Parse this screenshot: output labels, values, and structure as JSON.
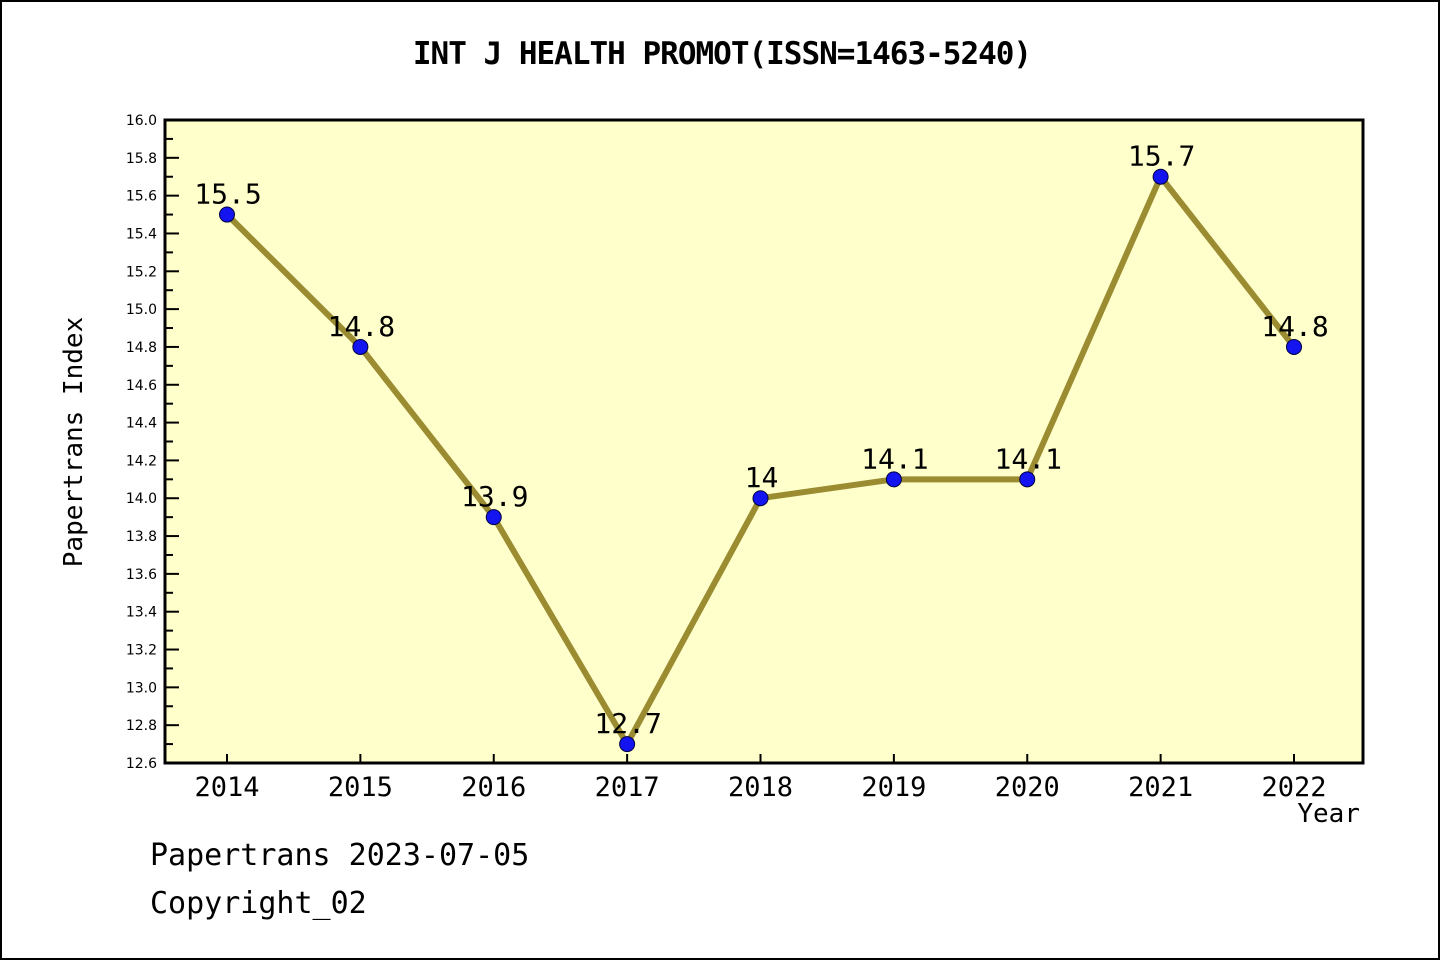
{
  "chart_data": {
    "type": "line",
    "title": "INT J HEALTH PROMOT(ISSN=1463-5240)",
    "xlabel": "Year",
    "ylabel": "Papertrans Index",
    "categories": [
      2014,
      2015,
      2016,
      2017,
      2018,
      2019,
      2020,
      2021,
      2022
    ],
    "values": [
      15.5,
      14.8,
      13.9,
      12.7,
      14,
      14.1,
      14.1,
      15.7,
      14.8
    ],
    "point_labels": [
      "15.5",
      "14.8",
      "13.9",
      "12.7",
      "14",
      "14.1",
      "14.1",
      "15.7",
      "14.8"
    ],
    "ylim": [
      12.6,
      16.0
    ],
    "y_major_tick_step": 0.2,
    "y_minor_tick_step": 0.1,
    "grid": "off",
    "legend": "none",
    "colors": {
      "line": "#9b8c32",
      "marker": "#1414f0",
      "marker_edge": "#000040",
      "plot_bg": "#ffffcc",
      "axis": "#000000",
      "text": "#000000"
    }
  },
  "footer": {
    "line1": "Papertrans 2023-07-05",
    "line2": "Copyright_02"
  }
}
